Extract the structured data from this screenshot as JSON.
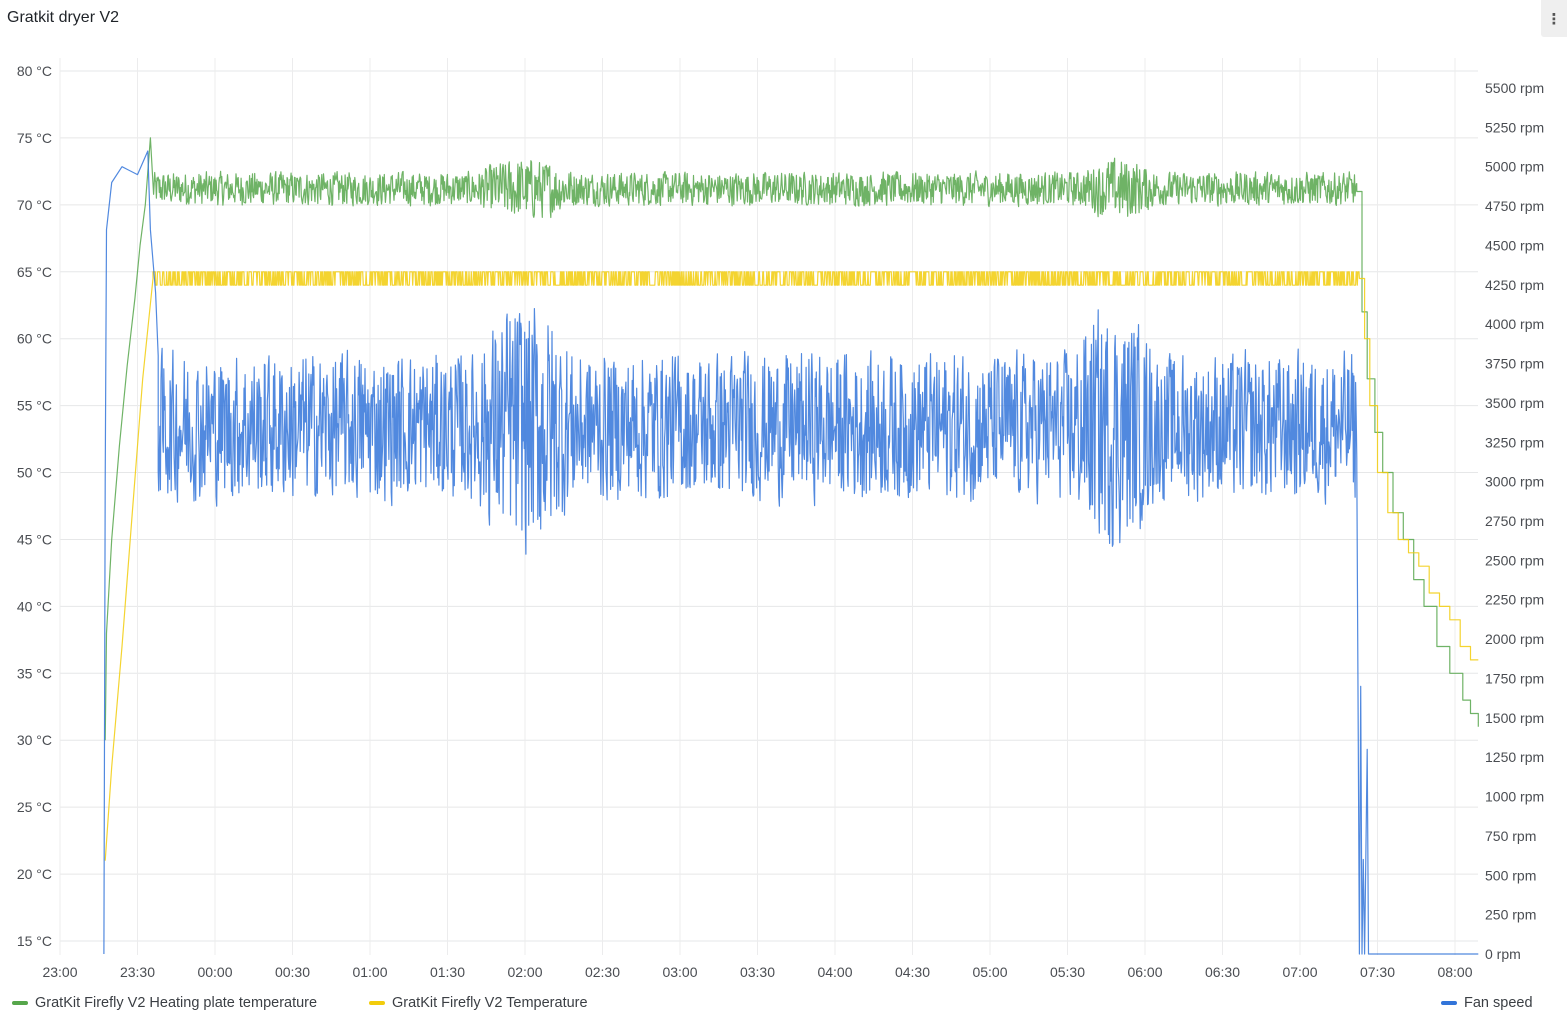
{
  "panel": {
    "title": "Gratkit dryer V2",
    "menu_icon": "vertical-ellipsis-icon"
  },
  "chart_data": {
    "type": "line",
    "title": "Gratkit dryer V2",
    "x_unit": "minutes since 23:00",
    "x_range": [
      0,
      549
    ],
    "x_ticks": [
      "23:00",
      "23:30",
      "00:00",
      "00:30",
      "01:00",
      "01:30",
      "02:00",
      "02:30",
      "03:00",
      "03:30",
      "04:00",
      "04:30",
      "05:00",
      "05:30",
      "06:00",
      "06:30",
      "07:00",
      "07:30",
      "08:00"
    ],
    "y_left": {
      "range": [
        14,
        81
      ],
      "unit": "°C",
      "ticks": [
        "80 °C",
        "75 °C",
        "70 °C",
        "65 °C",
        "60 °C",
        "55 °C",
        "50 °C",
        "45 °C",
        "40 °C",
        "35 °C",
        "30 °C",
        "25 °C",
        "20 °C",
        "15 °C"
      ],
      "tick_values": [
        80,
        75,
        70,
        65,
        60,
        55,
        50,
        45,
        40,
        35,
        30,
        25,
        20,
        15
      ]
    },
    "y_right": {
      "range": [
        0,
        5500
      ],
      "unit": "rpm",
      "ticks": [
        "5500 rpm",
        "5250 rpm",
        "5000 rpm",
        "4750 rpm",
        "4500 rpm",
        "4250 rpm",
        "4000 rpm",
        "3750 rpm",
        "3500 rpm",
        "3250 rpm",
        "3000 rpm",
        "2750 rpm",
        "2500 rpm",
        "2250 rpm",
        "2000 rpm",
        "1750 rpm",
        "1500 rpm",
        "1250 rpm",
        "1000 rpm",
        "750 rpm",
        "500 rpm",
        "250 rpm",
        "0 rpm"
      ],
      "tick_values": [
        5500,
        5250,
        5000,
        4750,
        4500,
        4250,
        4000,
        3750,
        3500,
        3250,
        3000,
        2750,
        2500,
        2250,
        2000,
        1750,
        1500,
        1250,
        1000,
        750,
        500,
        250,
        0
      ]
    },
    "grid": true,
    "legend_placement": "bottom",
    "series": [
      {
        "name": "GratKit Firefly V2 Heating plate temperature",
        "axis": "left",
        "color": "#56A64B",
        "ramp": [
          [
            17.5,
            30
          ],
          [
            18,
            38
          ],
          [
            20,
            45
          ],
          [
            23,
            52
          ],
          [
            26,
            58
          ],
          [
            29,
            63
          ],
          [
            31,
            67
          ],
          [
            33,
            70
          ],
          [
            35,
            75
          ]
        ],
        "steady": {
          "from": 36,
          "to": 502,
          "mean": 71.2,
          "amplitude": 1.4
        },
        "bursts": [
          {
            "from": 160,
            "to": 200,
            "amplitude": 2.6
          },
          {
            "from": 395,
            "to": 425,
            "amplitude": 2.6
          }
        ],
        "cooldown": [
          [
            502,
            71
          ],
          [
            504,
            62
          ],
          [
            506,
            57
          ],
          [
            509,
            53
          ],
          [
            512,
            50
          ],
          [
            516,
            47
          ],
          [
            520,
            45
          ],
          [
            524,
            42
          ],
          [
            528,
            40
          ],
          [
            533,
            37
          ],
          [
            538,
            35
          ],
          [
            543,
            33
          ],
          [
            546,
            32
          ],
          [
            549,
            31
          ]
        ]
      },
      {
        "name": "GratKit Firefly V2 Temperature",
        "axis": "left",
        "color": "#F2CC0C",
        "ramp": [
          [
            17.5,
            21
          ],
          [
            20,
            28
          ],
          [
            24,
            37
          ],
          [
            28,
            47
          ],
          [
            32,
            57
          ],
          [
            36,
            64.5
          ]
        ],
        "steady": {
          "from": 36,
          "to": 503,
          "mean": 64.5,
          "amplitude": 0.5
        },
        "bursts": [],
        "cooldown": [
          [
            503,
            64.5
          ],
          [
            505,
            60
          ],
          [
            507,
            55
          ],
          [
            510,
            50
          ],
          [
            514,
            47
          ],
          [
            518,
            45
          ],
          [
            522,
            44
          ],
          [
            526,
            43
          ],
          [
            530,
            41
          ],
          [
            534,
            40
          ],
          [
            538,
            39
          ],
          [
            542,
            37
          ],
          [
            546,
            36
          ],
          [
            549,
            36
          ]
        ]
      },
      {
        "name": "Fan speed",
        "axis": "right",
        "color": "#3274D9",
        "ramp": [
          [
            17,
            0
          ],
          [
            17.5,
            3000
          ],
          [
            18,
            4600
          ],
          [
            20,
            4900
          ],
          [
            24,
            5000
          ],
          [
            30,
            4950
          ],
          [
            34,
            5100
          ],
          [
            35,
            4600
          ],
          [
            37,
            4200
          ],
          [
            38,
            3800
          ]
        ],
        "steady": {
          "from": 38,
          "to": 502,
          "mean": 3350,
          "amplitude": 520
        },
        "bursts": [
          {
            "from": 160,
            "to": 200,
            "amplitude": 900
          },
          {
            "from": 390,
            "to": 425,
            "amplitude": 850
          }
        ],
        "cooldown": [
          [
            502,
            3100
          ],
          [
            503,
            0
          ],
          [
            503.5,
            1700
          ],
          [
            504,
            0
          ],
          [
            504.5,
            600
          ],
          [
            505,
            0
          ],
          [
            506,
            1300
          ],
          [
            506.5,
            0
          ],
          [
            549,
            0
          ]
        ]
      }
    ]
  }
}
